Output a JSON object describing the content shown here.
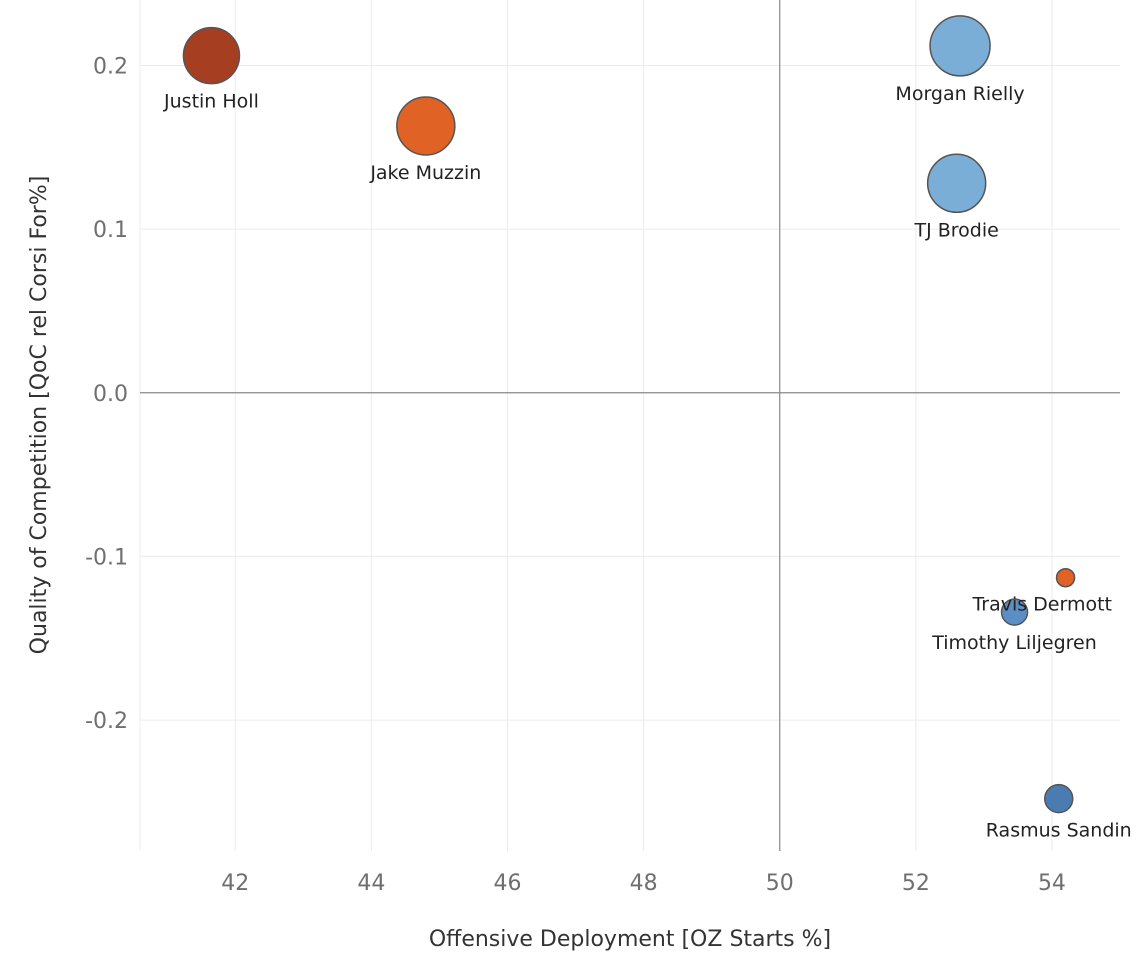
{
  "chart_data": {
    "type": "scatter",
    "xlabel": "Offensive Deployment [OZ Starts %]",
    "ylabel": "Quality of Competition [QoC rel Corsi For%]",
    "xlim": [
      40.6,
      55.0
    ],
    "ylim": [
      -0.28,
      0.24
    ],
    "x_ticks": [
      42,
      44,
      46,
      48,
      50,
      52,
      54
    ],
    "y_ticks": [
      0.2,
      0.1,
      0.0,
      -0.1,
      -0.2
    ],
    "y_tick_labels": [
      "0.2",
      "0.1",
      "0.0",
      "-0.1",
      "-0.2"
    ],
    "reference_lines": {
      "x": 50,
      "y": 0
    },
    "grid": true,
    "points": [
      {
        "label": "Justin Holl",
        "x": 41.65,
        "y": 0.206,
        "size": 28,
        "color": "#a63f22",
        "label_pos": "below"
      },
      {
        "label": "Jake Muzzin",
        "x": 44.8,
        "y": 0.163,
        "size": 29,
        "color": "#e06224",
        "label_pos": "below"
      },
      {
        "label": "Morgan Rielly",
        "x": 52.65,
        "y": 0.212,
        "size": 30,
        "color": "#7aaed6",
        "label_pos": "below"
      },
      {
        "label": "TJ Brodie",
        "x": 52.6,
        "y": 0.128,
        "size": 29,
        "color": "#7aaed6",
        "label_pos": "below"
      },
      {
        "label": "Travis Dermott",
        "x": 54.2,
        "y": -0.113,
        "size": 9,
        "color": "#e06224",
        "label_pos": "below"
      },
      {
        "label": "Timothy Liljegren",
        "x": 53.45,
        "y": -0.134,
        "size": 13,
        "color": "#5b8fc4",
        "label_pos": "below"
      },
      {
        "label": "Rasmus Sandin",
        "x": 54.1,
        "y": -0.248,
        "size": 14,
        "color": "#4a7cb1",
        "label_pos": "below"
      }
    ]
  }
}
